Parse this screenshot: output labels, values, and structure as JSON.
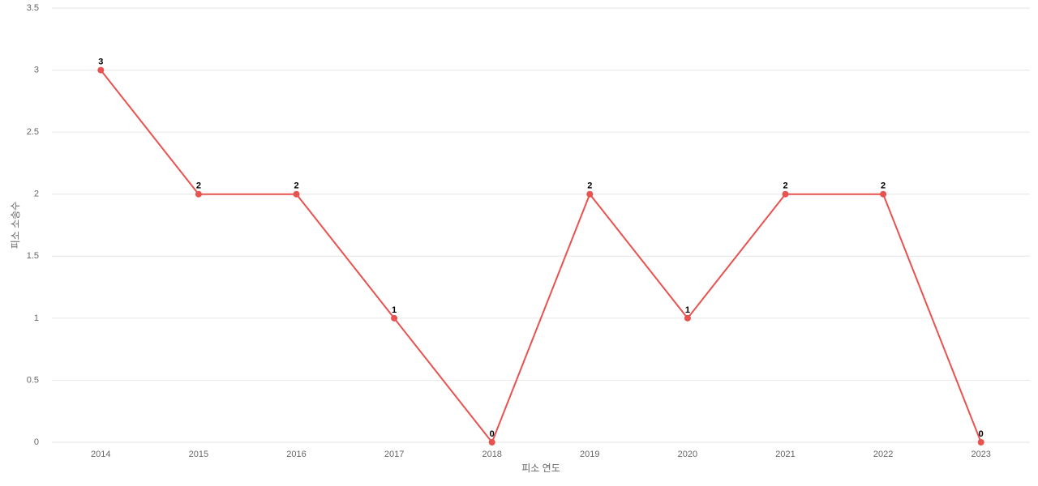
{
  "chart_data": {
    "type": "line",
    "x_label": "피소 연도",
    "y_label": "피소 소송수",
    "categories": [
      "2014",
      "2015",
      "2016",
      "2017",
      "2018",
      "2019",
      "2020",
      "2021",
      "2022",
      "2023"
    ],
    "values": [
      3,
      2,
      2,
      1,
      0,
      2,
      1,
      2,
      2,
      0
    ],
    "color": "#e8524f",
    "ylim": [
      0,
      3.5
    ],
    "yticks": [
      0,
      0.5,
      1,
      1.5,
      2,
      2.5,
      3,
      3.5
    ],
    "grid": true,
    "data_labels": true
  }
}
